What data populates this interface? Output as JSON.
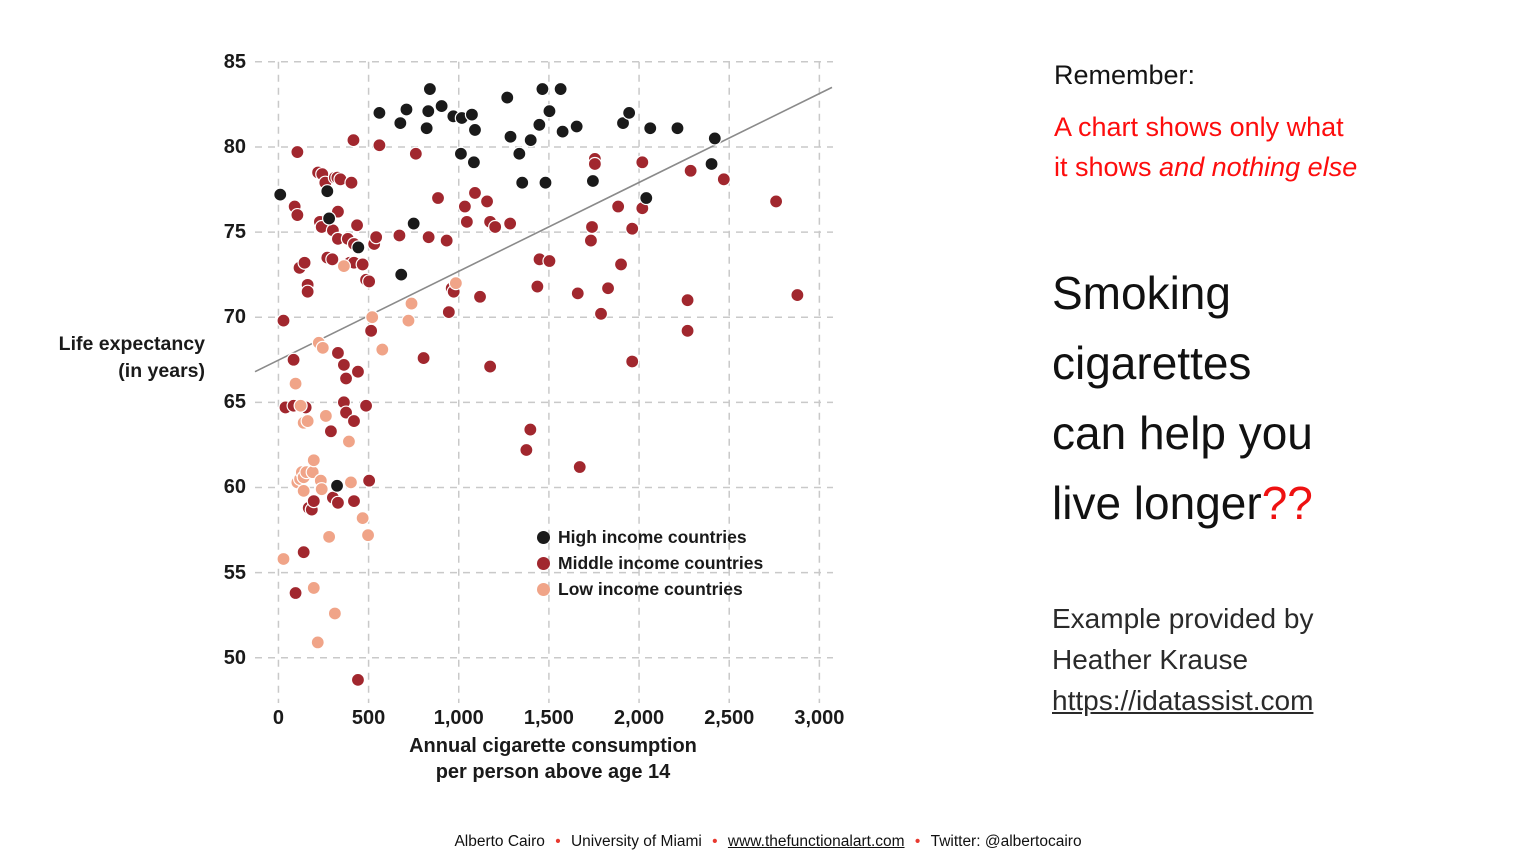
{
  "right_panel": {
    "remember_label": "Remember:",
    "warning_line1": "A chart shows only what",
    "warning_line2_regular": "it shows ",
    "warning_line2_italic": "and nothing else",
    "headline_lines": [
      "Smoking",
      "cigarettes",
      "can help you",
      "live longer"
    ],
    "headline_suffix": "??",
    "credit_lines": [
      "Example provided by",
      "Heather Krause"
    ],
    "credit_link": "https://idatassist.com",
    "red_text_color": "#fd0d0d"
  },
  "footer": {
    "segments": [
      "Alberto Cairo",
      "University of Miami",
      "www.thefunctionalart.com",
      "Twitter: @albertocairo"
    ],
    "separator": "•",
    "separator_color": "#e8392f",
    "link_segment_index": 2
  },
  "chart_data": {
    "type": "scatter",
    "xlabel_lines": [
      "Annual cigarette consumption",
      "per person above age 14"
    ],
    "ylabel_lines": [
      "Life expectancy",
      "(in years)"
    ],
    "x_ticks": [
      0,
      500,
      1000,
      1500,
      2000,
      2500,
      3000
    ],
    "x_tick_labels": [
      "0",
      "500",
      "1,000",
      "1,500",
      "2,000",
      "2,500",
      "3,000"
    ],
    "y_ticks": [
      50,
      55,
      60,
      65,
      70,
      75,
      80,
      85
    ],
    "y_tick_labels": [
      "50",
      "55",
      "60",
      "65",
      "70",
      "75",
      "80",
      "85"
    ],
    "xlim": [
      -130,
      3070
    ],
    "ylim": [
      47.4,
      85.4
    ],
    "grid": "dashed",
    "grid_color": "#c9c9c9",
    "legend_position": "inside-lower-right",
    "dot_stroke": "#ffffff",
    "trendline": {
      "color": "#8a8a8a",
      "points": [
        [
          -130,
          66.8
        ],
        [
          3070,
          83.5
        ]
      ]
    },
    "series": [
      {
        "name": "High income countries",
        "color": "#1a1a1a",
        "points": [
          [
            10,
            77.2
          ],
          [
            271,
            77.4
          ],
          [
            281,
            75.8
          ],
          [
            325,
            60.1
          ],
          [
            443,
            74.1
          ],
          [
            560,
            82
          ],
          [
            676,
            81.4
          ],
          [
            681,
            72.5
          ],
          [
            710,
            82.2
          ],
          [
            750,
            75.5
          ],
          [
            822,
            81.1
          ],
          [
            831,
            82.1
          ],
          [
            840,
            83.4
          ],
          [
            905,
            82.4
          ],
          [
            970,
            81.8
          ],
          [
            1012,
            79.6
          ],
          [
            1017,
            81.7
          ],
          [
            1073,
            81.9
          ],
          [
            1084,
            79.1
          ],
          [
            1090,
            81
          ],
          [
            1269,
            82.9
          ],
          [
            1287,
            80.6
          ],
          [
            1336,
            79.6
          ],
          [
            1352,
            77.9
          ],
          [
            1399,
            80.4
          ],
          [
            1447,
            81.3
          ],
          [
            1464,
            83.4
          ],
          [
            1481,
            77.9
          ],
          [
            1503,
            82.1
          ],
          [
            1565,
            83.4
          ],
          [
            1576,
            80.9
          ],
          [
            1654,
            81.2
          ],
          [
            1744,
            78
          ],
          [
            1911,
            81.4
          ],
          [
            1945,
            82
          ],
          [
            2040,
            77
          ],
          [
            2062,
            81.1
          ],
          [
            2213,
            81.1
          ],
          [
            2402,
            79
          ],
          [
            2420,
            80.5
          ]
        ]
      },
      {
        "name": "Middle income countries",
        "color": "#a1272e",
        "points": [
          [
            28,
            69.8
          ],
          [
            39,
            64.7
          ],
          [
            84,
            67.5
          ],
          [
            84,
            64.8
          ],
          [
            90,
            76.5
          ],
          [
            95,
            53.8
          ],
          [
            105,
            79.7
          ],
          [
            105,
            76
          ],
          [
            117,
            72.9
          ],
          [
            140,
            56.2
          ],
          [
            145,
            73.2
          ],
          [
            151,
            64.7
          ],
          [
            162,
            71.9
          ],
          [
            162,
            71.5
          ],
          [
            168,
            58.8
          ],
          [
            185,
            58.7
          ],
          [
            196,
            59.2
          ],
          [
            220,
            78.5
          ],
          [
            230,
            75.6
          ],
          [
            240,
            75.3
          ],
          [
            243,
            78.4
          ],
          [
            260,
            77.9
          ],
          [
            271,
            73.5
          ],
          [
            291,
            63.3
          ],
          [
            299,
            73.4
          ],
          [
            302,
            75.1
          ],
          [
            302,
            59.4
          ],
          [
            313,
            78.2
          ],
          [
            327,
            78.2
          ],
          [
            330,
            76.2
          ],
          [
            330,
            74.6
          ],
          [
            330,
            67.9
          ],
          [
            330,
            59.1
          ],
          [
            344,
            78.1
          ],
          [
            363,
            67.2
          ],
          [
            363,
            65
          ],
          [
            375,
            66.4
          ],
          [
            375,
            64.4
          ],
          [
            385,
            74.6
          ],
          [
            396,
            73.2
          ],
          [
            405,
            77.9
          ],
          [
            416,
            80.4
          ],
          [
            419,
            74.3
          ],
          [
            419,
            73.2
          ],
          [
            419,
            63.9
          ],
          [
            419,
            59.2
          ],
          [
            436,
            75.4
          ],
          [
            441,
            66.8
          ],
          [
            441,
            48.7
          ],
          [
            467,
            73.1
          ],
          [
            486,
            72.2
          ],
          [
            486,
            64.8
          ],
          [
            503,
            72.1
          ],
          [
            503,
            60.4
          ],
          [
            514,
            69.2
          ],
          [
            531,
            74.3
          ],
          [
            542,
            74.7
          ],
          [
            560,
            80.1
          ],
          [
            671,
            74.8
          ],
          [
            762,
            79.6
          ],
          [
            805,
            67.6
          ],
          [
            833,
            74.7
          ],
          [
            885,
            77
          ],
          [
            933,
            74.5
          ],
          [
            945,
            70.3
          ],
          [
            961,
            71.7
          ],
          [
            972,
            71.5
          ],
          [
            1034,
            76.5
          ],
          [
            1045,
            75.6
          ],
          [
            1090,
            77.3
          ],
          [
            1118,
            71.2
          ],
          [
            1157,
            76.8
          ],
          [
            1174,
            75.6
          ],
          [
            1174,
            67.1
          ],
          [
            1202,
            75.3
          ],
          [
            1285,
            75.5
          ],
          [
            1375,
            62.2
          ],
          [
            1397,
            63.4
          ],
          [
            1436,
            71.8
          ],
          [
            1448,
            73.4
          ],
          [
            1503,
            73.3
          ],
          [
            1660,
            71.4
          ],
          [
            1671,
            61.2
          ],
          [
            1733,
            74.5
          ],
          [
            1739,
            75.3
          ],
          [
            1755,
            79.3
          ],
          [
            1755,
            79
          ],
          [
            1789,
            70.2
          ],
          [
            1828,
            71.7
          ],
          [
            1884,
            76.5
          ],
          [
            1900,
            73.1
          ],
          [
            1962,
            75.2
          ],
          [
            1962,
            67.4
          ],
          [
            2018,
            79.1
          ],
          [
            2018,
            76.4
          ],
          [
            2269,
            71
          ],
          [
            2269,
            69.2
          ],
          [
            2286,
            78.6
          ],
          [
            2470,
            78.1
          ],
          [
            2760,
            76.8
          ],
          [
            2878,
            71.3
          ]
        ]
      },
      {
        "name": "Low income countries",
        "color": "#f0a488",
        "points": [
          [
            28,
            55.8
          ],
          [
            95,
            66.1
          ],
          [
            105,
            60.3
          ],
          [
            120,
            60.5
          ],
          [
            123,
            64.8
          ],
          [
            130,
            60.9
          ],
          [
            140,
            63.8
          ],
          [
            140,
            60.6
          ],
          [
            140,
            59.8
          ],
          [
            155,
            60.9
          ],
          [
            162,
            63.9
          ],
          [
            190,
            60.9
          ],
          [
            196,
            61.6
          ],
          [
            196,
            54.1
          ],
          [
            218,
            50.9
          ],
          [
            224,
            68.5
          ],
          [
            235,
            60.4
          ],
          [
            240,
            59.9
          ],
          [
            246,
            68.2
          ],
          [
            263,
            64.2
          ],
          [
            281,
            57.1
          ],
          [
            313,
            52.6
          ],
          [
            363,
            73
          ],
          [
            391,
            62.7
          ],
          [
            402,
            60.3
          ],
          [
            467,
            58.2
          ],
          [
            497,
            57.2
          ],
          [
            520,
            70
          ],
          [
            576,
            68.1
          ],
          [
            721,
            69.8
          ],
          [
            738,
            70.8
          ],
          [
            984,
            72
          ]
        ]
      }
    ]
  }
}
